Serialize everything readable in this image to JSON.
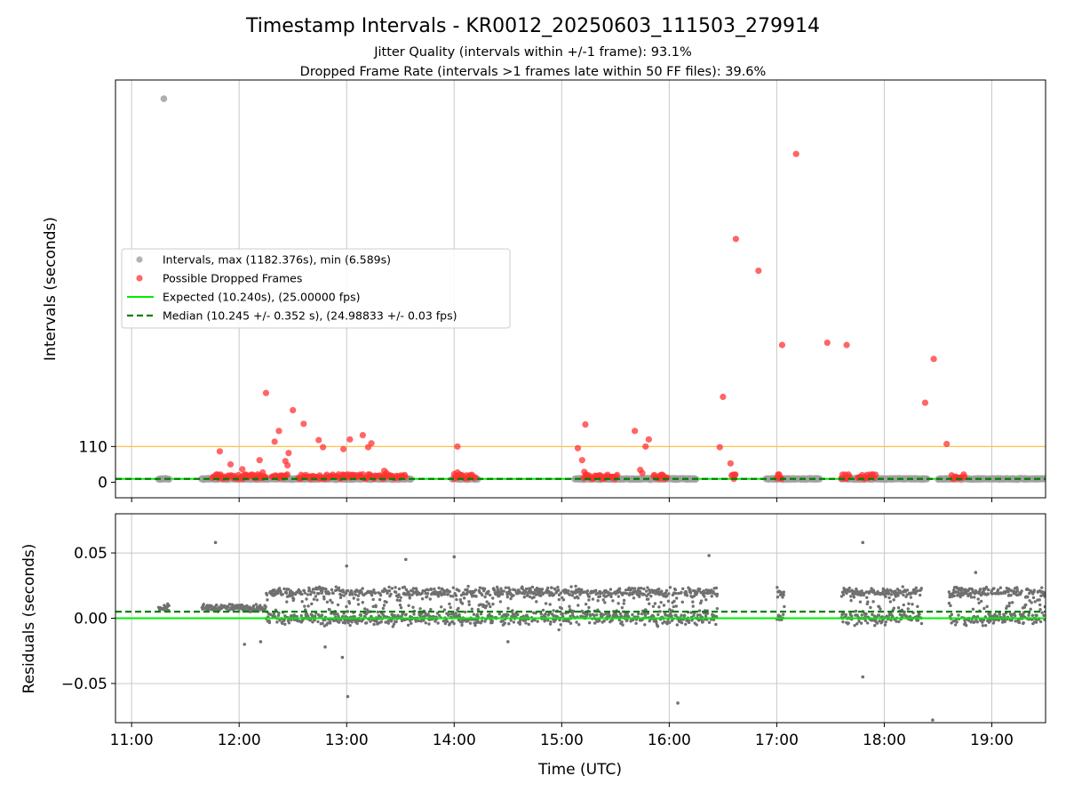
{
  "figure": {
    "title": "Timestamp Intervals - KR0012_20250603_111503_279914",
    "subtitle_1": "Jitter Quality (intervals within +/-1 frame): 93.1%",
    "subtitle_2": "Dropped Frame Rate (intervals >1 frames late within 50 FF files): 39.6%"
  },
  "colors": {
    "intervals": "#a0a0a0",
    "dropped": "#ff3333",
    "expected": "#00ee00",
    "median": "#008000",
    "threshold": "#ffc04d",
    "residuals": "#707070",
    "grid": "#c8c8c8"
  },
  "chart_data": [
    {
      "type": "scatter",
      "ylabel": "Intervals (seconds)",
      "x_unit": "hours UTC",
      "xlim": [
        10.85,
        19.5
      ],
      "ylim": [
        -48,
        1240
      ],
      "yticks": [
        0,
        110
      ],
      "ytick_labels": [
        "0",
        "110"
      ],
      "grid": "vertical only",
      "legend_placement": "center-left",
      "legend": [
        {
          "label": "Intervals, max (1182.376s), min (6.589s)",
          "kind": "marker",
          "color": "#a0a0a0"
        },
        {
          "label": "Possible Dropped Frames",
          "kind": "marker",
          "color": "#ff3333"
        },
        {
          "label": "Expected (10.240s), (25.00000 fps)",
          "kind": "solid",
          "color": "#00ee00"
        },
        {
          "label": "Median (10.245 +/- 0.352 s), (24.98833 +/- 0.03 fps)",
          "kind": "dashed",
          "color": "#008000"
        }
      ],
      "reference_lines": {
        "expected": 10.24,
        "median": 10.245,
        "threshold": 110
      },
      "interval_outlier": {
        "x": 11.3,
        "y": 1182.4
      },
      "interval_segments": [
        [
          11.25,
          11.35
        ],
        [
          11.65,
          13.6
        ],
        [
          13.98,
          14.22
        ],
        [
          15.12,
          15.82
        ],
        [
          15.82,
          16.25
        ],
        [
          16.9,
          17.4
        ],
        [
          17.6,
          18.4
        ],
        [
          18.5,
          19.5
        ]
      ],
      "dropped_frames": [
        {
          "x": 11.82,
          "y": 95
        },
        {
          "x": 11.92,
          "y": 55
        },
        {
          "x": 12.03,
          "y": 40
        },
        {
          "x": 12.19,
          "y": 68
        },
        {
          "x": 12.22,
          "y": 30
        },
        {
          "x": 12.25,
          "y": 275
        },
        {
          "x": 12.33,
          "y": 125
        },
        {
          "x": 12.37,
          "y": 158
        },
        {
          "x": 12.43,
          "y": 65
        },
        {
          "x": 12.45,
          "y": 52
        },
        {
          "x": 12.46,
          "y": 90
        },
        {
          "x": 12.5,
          "y": 222
        },
        {
          "x": 12.6,
          "y": 180
        },
        {
          "x": 12.74,
          "y": 130
        },
        {
          "x": 12.78,
          "y": 108
        },
        {
          "x": 12.97,
          "y": 102
        },
        {
          "x": 13.03,
          "y": 132
        },
        {
          "x": 13.15,
          "y": 145
        },
        {
          "x": 13.2,
          "y": 108
        },
        {
          "x": 13.23,
          "y": 120
        },
        {
          "x": 13.35,
          "y": 35
        },
        {
          "x": 13.37,
          "y": 28
        },
        {
          "x": 14.03,
          "y": 110
        },
        {
          "x": 14.0,
          "y": 25
        },
        {
          "x": 14.03,
          "y": 30
        },
        {
          "x": 15.15,
          "y": 105
        },
        {
          "x": 15.19,
          "y": 68
        },
        {
          "x": 15.21,
          "y": 32
        },
        {
          "x": 15.22,
          "y": 178
        },
        {
          "x": 15.68,
          "y": 158
        },
        {
          "x": 15.73,
          "y": 38
        },
        {
          "x": 15.75,
          "y": 28
        },
        {
          "x": 15.78,
          "y": 110
        },
        {
          "x": 15.81,
          "y": 132
        },
        {
          "x": 16.47,
          "y": 108
        },
        {
          "x": 16.5,
          "y": 263
        },
        {
          "x": 16.57,
          "y": 58
        },
        {
          "x": 16.62,
          "y": 750
        },
        {
          "x": 16.83,
          "y": 652
        },
        {
          "x": 17.05,
          "y": 423
        },
        {
          "x": 17.18,
          "y": 1012
        },
        {
          "x": 17.47,
          "y": 430
        },
        {
          "x": 17.65,
          "y": 423
        },
        {
          "x": 18.38,
          "y": 245
        },
        {
          "x": 18.46,
          "y": 380
        },
        {
          "x": 18.58,
          "y": 118
        }
      ],
      "dropped_dense_ranges": [
        [
          11.75,
          12.25
        ],
        [
          12.3,
          12.45
        ],
        [
          12.55,
          13.25
        ],
        [
          13.25,
          13.55
        ],
        [
          14.0,
          14.2
        ],
        [
          15.2,
          15.52
        ],
        [
          15.85,
          15.98
        ],
        [
          16.58,
          16.62
        ],
        [
          17.0,
          17.05
        ],
        [
          17.6,
          17.68
        ],
        [
          17.75,
          17.92
        ],
        [
          18.62,
          18.75
        ]
      ]
    },
    {
      "type": "scatter",
      "xlabel": "Time (UTC)",
      "ylabel": "Residuals (seconds)",
      "xlim": [
        10.85,
        19.5
      ],
      "ylim": [
        -0.08,
        0.08
      ],
      "xticks": [
        11,
        12,
        13,
        14,
        15,
        16,
        17,
        18,
        19
      ],
      "xtick_labels": [
        "11:00",
        "12:00",
        "13:00",
        "14:00",
        "15:00",
        "16:00",
        "17:00",
        "18:00",
        "19:00"
      ],
      "yticks": [
        -0.05,
        0.0,
        0.05
      ],
      "ytick_labels": [
        "−0.05",
        "0.00",
        "0.05"
      ],
      "grid": "both",
      "reference_lines": {
        "expected": 0.0,
        "median": 0.005
      },
      "segments": [
        {
          "start": 11.25,
          "end": 11.35,
          "band": "narrow"
        },
        {
          "start": 11.65,
          "end": 12.25,
          "band": "narrow"
        },
        {
          "start": 12.25,
          "end": 13.6,
          "band": "wide"
        },
        {
          "start": 13.6,
          "end": 15.2,
          "band": "wide"
        },
        {
          "start": 15.2,
          "end": 16.45,
          "band": "wide"
        },
        {
          "start": 17.0,
          "end": 17.07,
          "band": "wide"
        },
        {
          "start": 17.6,
          "end": 18.35,
          "band": "wide"
        },
        {
          "start": 18.6,
          "end": 19.5,
          "band": "wide"
        }
      ],
      "outliers": [
        {
          "x": 11.78,
          "y": 0.058
        },
        {
          "x": 12.05,
          "y": -0.02
        },
        {
          "x": 12.2,
          "y": -0.018
        },
        {
          "x": 12.8,
          "y": -0.022
        },
        {
          "x": 12.96,
          "y": -0.03
        },
        {
          "x": 13.01,
          "y": -0.06
        },
        {
          "x": 13.0,
          "y": 0.04
        },
        {
          "x": 13.55,
          "y": 0.045
        },
        {
          "x": 14.0,
          "y": 0.047
        },
        {
          "x": 14.5,
          "y": -0.018
        },
        {
          "x": 16.08,
          "y": -0.065
        },
        {
          "x": 16.37,
          "y": 0.048
        },
        {
          "x": 17.8,
          "y": 0.058
        },
        {
          "x": 17.8,
          "y": -0.045
        },
        {
          "x": 18.45,
          "y": -0.078
        },
        {
          "x": 18.85,
          "y": 0.035
        }
      ]
    }
  ]
}
